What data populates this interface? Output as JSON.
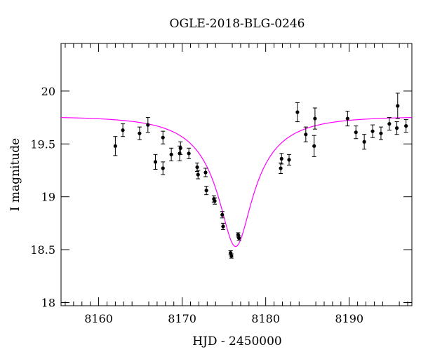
{
  "chart_data": {
    "type": "scatter",
    "title": "OGLE-2018-BLG-0246",
    "xlabel": "HJD - 2450000",
    "ylabel": "I magnitude",
    "xlim": [
      8155.5,
      8197.5
    ],
    "ylim": [
      20.45,
      17.97
    ],
    "y_inverted": true,
    "x_ticks": [
      8160,
      8170,
      8180,
      8190
    ],
    "x_tick_labels": [
      "8160",
      "8170",
      "8180",
      "8190"
    ],
    "y_ticks": [
      18,
      18.5,
      19,
      19.5,
      20
    ],
    "y_tick_labels": [
      "18",
      "18.5",
      "19",
      "19.5",
      "20"
    ],
    "grid": false,
    "series": [
      {
        "kind": "points",
        "x": [
          8162.0,
          8162.9,
          8164.9,
          8165.9,
          8166.8,
          8167.7,
          8167.7,
          8168.7,
          8169.7,
          8169.8,
          8170.8,
          8171.8,
          8171.9,
          8172.8,
          8172.9,
          8173.8,
          8173.9,
          8174.8,
          8174.9,
          8175.8,
          8175.9,
          8176.7,
          8176.8,
          8181.8,
          8181.9,
          8182.8,
          8183.8,
          8184.8,
          8185.8,
          8185.9,
          8189.8,
          8190.8,
          8191.8,
          8192.8,
          8193.8,
          8194.8,
          8195.7,
          8195.8,
          8196.8
        ],
        "y": [
          19.48,
          19.63,
          19.6,
          19.68,
          19.33,
          19.27,
          19.56,
          19.4,
          19.41,
          19.46,
          19.41,
          19.28,
          19.21,
          19.23,
          19.06,
          18.98,
          18.96,
          18.83,
          18.72,
          18.47,
          18.44,
          18.64,
          18.61,
          19.27,
          19.36,
          19.35,
          19.8,
          19.59,
          19.48,
          19.74,
          19.74,
          19.61,
          19.52,
          19.62,
          19.6,
          19.69,
          19.65,
          19.86,
          19.67
        ],
        "yerr": [
          0.09,
          0.06,
          0.06,
          0.07,
          0.07,
          0.06,
          0.06,
          0.06,
          0.07,
          0.06,
          0.05,
          0.04,
          0.04,
          0.04,
          0.04,
          0.03,
          0.03,
          0.03,
          0.03,
          0.02,
          0.02,
          0.02,
          0.02,
          0.05,
          0.05,
          0.05,
          0.09,
          0.07,
          0.1,
          0.1,
          0.07,
          0.06,
          0.07,
          0.06,
          0.06,
          0.06,
          0.06,
          0.12,
          0.06
        ],
        "color": "#000000"
      },
      {
        "kind": "model-curve",
        "baseline_mag": 19.76,
        "peak_mag": 18.53,
        "t0": 8176.4,
        "u0": 0.25,
        "tE": 8.0,
        "color": "#ff00ff"
      }
    ]
  }
}
